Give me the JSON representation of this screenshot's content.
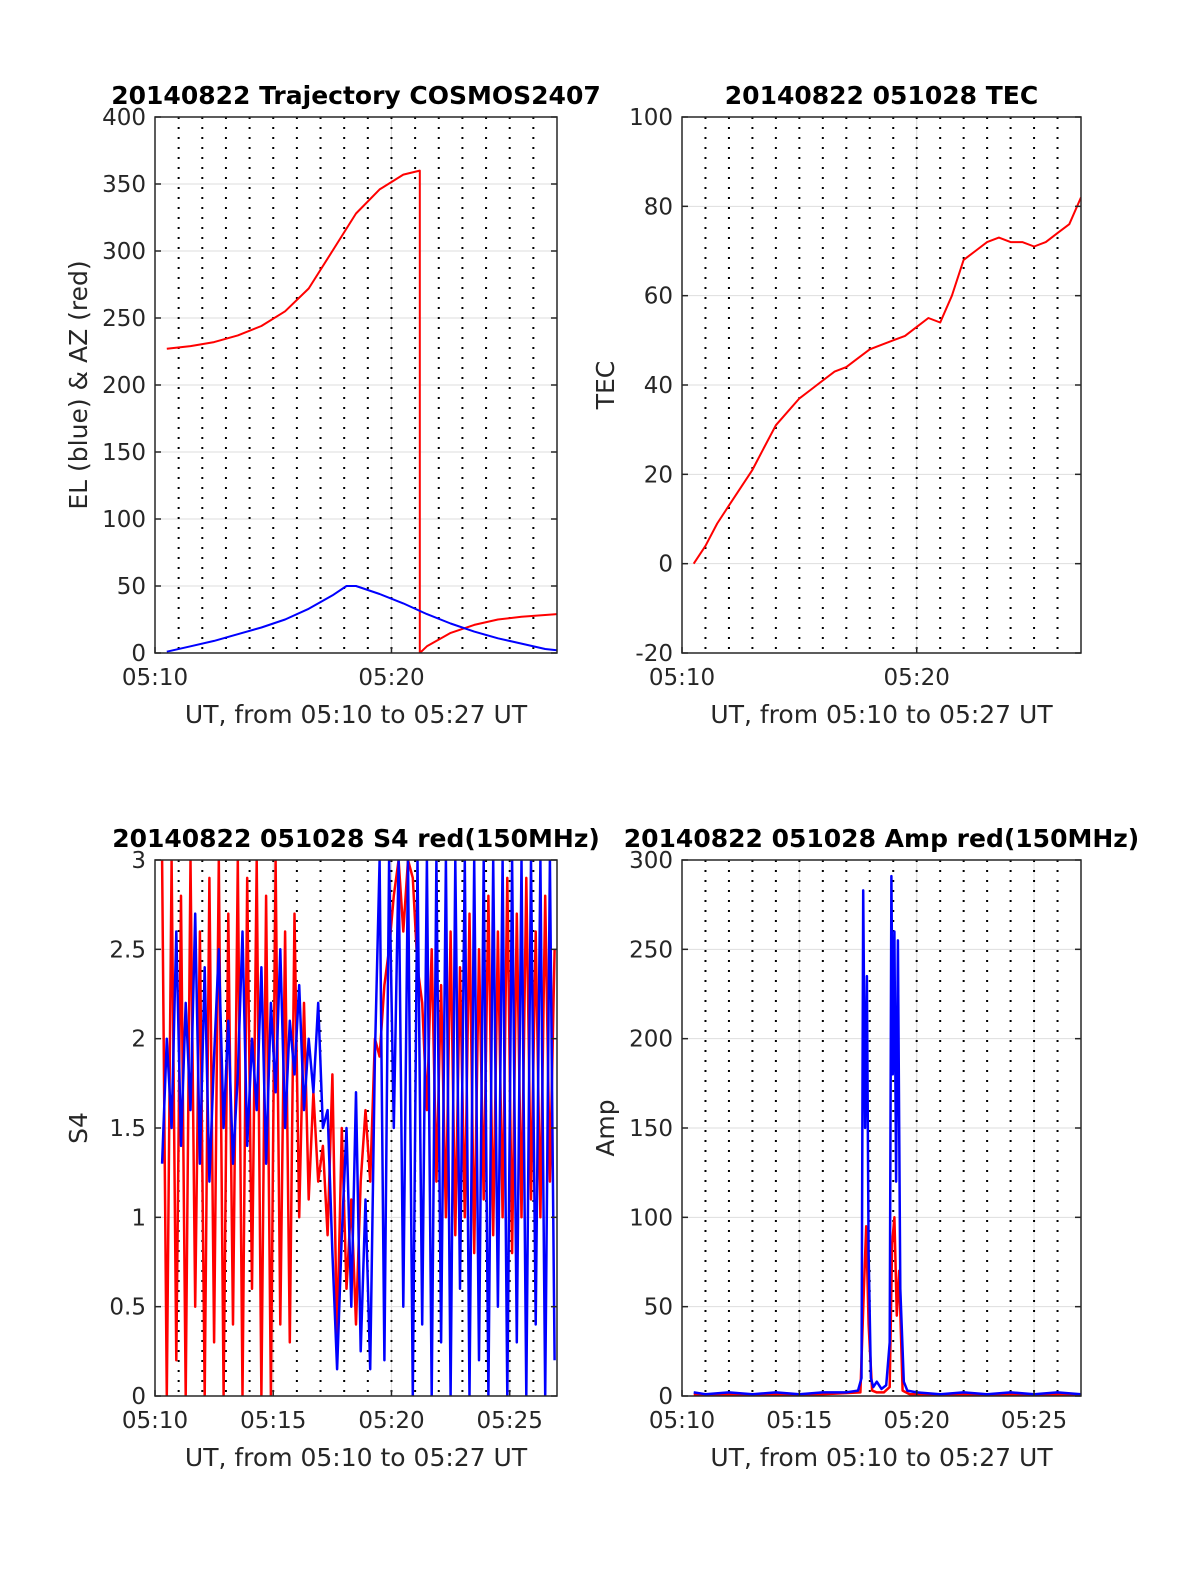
{
  "chart_data": [
    {
      "type": "line",
      "title": "20140822 Trajectory COSMOS2407",
      "xlabel": "UT, from 05:10 to 05:27 UT",
      "ylabel": "EL (blue) & AZ (red)",
      "xlim": [
        10,
        27
      ],
      "ylim": [
        0,
        400
      ],
      "xticks": [
        10,
        20
      ],
      "xtick_labels": [
        "05:10",
        "05:20"
      ],
      "yticks": [
        0,
        50,
        100,
        150,
        200,
        250,
        300,
        350,
        400
      ],
      "ytick_labels": [
        "0",
        "50",
        "100",
        "150",
        "200",
        "250",
        "300",
        "350",
        "400"
      ],
      "grid": true,
      "series": [
        {
          "color": "#ff0000",
          "x": [
            10.5,
            11.5,
            12.5,
            13.5,
            14.5,
            15.5,
            16.5,
            17.5,
            18.5,
            19.5,
            20.5,
            21.2,
            21.2,
            21.5,
            22.5,
            23.5,
            24.5,
            25.5,
            27
          ],
          "y": [
            227,
            229,
            232,
            237,
            244,
            255,
            272,
            300,
            328,
            346,
            357,
            360,
            0,
            5,
            15,
            21,
            25,
            27,
            29
          ]
        },
        {
          "color": "#0000ff",
          "x": [
            10.5,
            11.5,
            12.5,
            13.5,
            14.5,
            15.5,
            16.5,
            17.5,
            18.1,
            18.5,
            19.5,
            20.5,
            21.5,
            22.5,
            23.5,
            24.5,
            25.5,
            26.5,
            27
          ],
          "y": [
            1,
            5,
            9,
            14,
            19,
            25,
            33,
            43,
            50,
            50,
            44,
            37,
            29,
            22,
            16,
            11,
            7,
            3,
            2
          ]
        }
      ]
    },
    {
      "type": "line",
      "title": "20140822 051028 TEC",
      "xlabel": "UT, from 05:10 to 05:27 UT",
      "ylabel": "TEC",
      "xlim": [
        10,
        27
      ],
      "ylim": [
        -20,
        100
      ],
      "xticks": [
        10,
        20
      ],
      "xtick_labels": [
        "05:10",
        "05:20"
      ],
      "yticks": [
        -20,
        0,
        20,
        40,
        60,
        80,
        100
      ],
      "ytick_labels": [
        "-20",
        "0",
        "20",
        "40",
        "60",
        "80",
        "100"
      ],
      "grid": true,
      "series": [
        {
          "color": "#ff0000",
          "x": [
            10.5,
            11,
            11.5,
            12,
            12.5,
            13,
            13.5,
            14,
            14.5,
            15,
            15.5,
            16,
            16.5,
            17,
            17.5,
            18,
            18.5,
            19,
            19.5,
            20,
            20.5,
            21,
            21.5,
            22,
            22.5,
            23,
            23.5,
            24,
            24.5,
            25,
            25.5,
            26,
            26.5,
            27
          ],
          "y": [
            0,
            4,
            9,
            13,
            17,
            21,
            26,
            31,
            34,
            37,
            39,
            41,
            43,
            44,
            46,
            48,
            49,
            50,
            51,
            53,
            55,
            54,
            60,
            68,
            70,
            72,
            73,
            72,
            72,
            71,
            72,
            74,
            76,
            82
          ]
        }
      ]
    },
    {
      "type": "line",
      "title": "20140822 051028 S4 red(150MHz)",
      "xlabel": "UT, from 05:10 to 05:27 UT",
      "ylabel": "S4",
      "xlim": [
        10,
        27
      ],
      "ylim": [
        0,
        3
      ],
      "xticks": [
        10,
        15,
        20,
        25
      ],
      "xtick_labels": [
        "05:10",
        "05:15",
        "05:20",
        "05:25"
      ],
      "yticks": [
        0,
        0.5,
        1,
        1.5,
        2,
        2.5,
        3
      ],
      "ytick_labels": [
        "0",
        "0.5",
        "1",
        "1.5",
        "2",
        "2.5",
        "3"
      ],
      "grid": true,
      "series": [
        {
          "color": "#ff0000",
          "x": [
            10.3,
            10.5,
            10.7,
            10.9,
            11.1,
            11.3,
            11.5,
            11.7,
            11.9,
            12.1,
            12.3,
            12.5,
            12.7,
            12.9,
            13.1,
            13.3,
            13.5,
            13.7,
            13.9,
            14.1,
            14.3,
            14.5,
            14.7,
            14.9,
            15.1,
            15.3,
            15.5,
            15.7,
            15.9,
            16.1,
            16.3,
            16.5,
            16.7,
            16.9,
            17.1,
            17.3,
            17.5,
            17.7,
            17.9,
            18.1,
            18.3,
            18.5,
            18.7,
            18.9,
            19.1,
            19.3,
            19.5,
            19.7,
            19.9,
            20.1,
            20.3,
            20.5,
            20.7,
            20.9,
            21.1,
            21.3,
            21.5,
            21.7,
            21.9,
            22.1,
            22.3,
            22.5,
            22.7,
            22.9,
            23.1,
            23.3,
            23.5,
            23.7,
            23.9,
            24.1,
            24.3,
            24.5,
            24.7,
            24.9,
            25.1,
            25.3,
            25.5,
            25.7,
            25.9,
            26.1,
            26.3,
            26.5,
            26.7,
            26.9
          ],
          "y": [
            3,
            0,
            3,
            0.2,
            2.8,
            0,
            3,
            0.5,
            2.6,
            0,
            2.9,
            0.3,
            3,
            0,
            2.7,
            0.4,
            3,
            0,
            2.9,
            0.6,
            3,
            0,
            2.8,
            0,
            3,
            0.4,
            2.6,
            0.3,
            2.7,
            1.0,
            2.2,
            1.1,
            1.7,
            1.2,
            1.4,
            0.9,
            1.8,
            0.3,
            1.5,
            0.6,
            1.1,
            0.4,
            1.2,
            1.6,
            1.2,
            2.0,
            1.9,
            2.3,
            2.5,
            2.8,
            3,
            2.6,
            3,
            2.9,
            2.4,
            2.2,
            1.6,
            2.5,
            1.2,
            2.3,
            1.0,
            2.6,
            0.9,
            2.4,
            1.0,
            2.7,
            0.8,
            2.5,
            1.1,
            2.8,
            0.9,
            2.6,
            1.0,
            2.9,
            0.8,
            2.7,
            1.0,
            2.9,
            1.1,
            2.6,
            1.0,
            2.8,
            1.2,
            2.5
          ]
        },
        {
          "color": "#0000ff",
          "x": [
            10.3,
            10.5,
            10.7,
            10.9,
            11.1,
            11.3,
            11.5,
            11.7,
            11.9,
            12.1,
            12.3,
            12.5,
            12.7,
            12.9,
            13.1,
            13.3,
            13.5,
            13.7,
            13.9,
            14.1,
            14.3,
            14.5,
            14.7,
            14.9,
            15.1,
            15.3,
            15.5,
            15.7,
            15.9,
            16.1,
            16.3,
            16.5,
            16.7,
            16.9,
            17.1,
            17.3,
            17.5,
            17.7,
            17.9,
            18.1,
            18.3,
            18.5,
            18.7,
            18.9,
            19.1,
            19.3,
            19.5,
            19.7,
            19.9,
            20.1,
            20.3,
            20.5,
            20.7,
            20.9,
            21.1,
            21.3,
            21.5,
            21.7,
            21.9,
            22.1,
            22.3,
            22.5,
            22.7,
            22.9,
            23.1,
            23.3,
            23.5,
            23.7,
            23.9,
            24.1,
            24.3,
            24.5,
            24.7,
            24.9,
            25.1,
            25.3,
            25.5,
            25.7,
            25.9,
            26.1,
            26.3,
            26.5,
            26.7,
            26.9
          ],
          "y": [
            1.3,
            2.0,
            1.5,
            2.6,
            1.4,
            2.2,
            1.6,
            2.7,
            1.3,
            2.4,
            1.2,
            1.9,
            2.5,
            1.5,
            2.1,
            1.3,
            1.8,
            2.6,
            1.4,
            2.0,
            1.6,
            2.4,
            1.3,
            2.2,
            1.7,
            2.5,
            1.5,
            2.1,
            1.8,
            2.3,
            1.6,
            2.0,
            1.7,
            2.2,
            1.5,
            1.6,
            0.8,
            0.15,
            0.9,
            1.5,
            0.5,
            1.7,
            0.25,
            1.1,
            0.15,
            1.9,
            3,
            0.2,
            3,
            1.5,
            3,
            0.5,
            3,
            0,
            3,
            0.4,
            3,
            0,
            3,
            0.3,
            3,
            0,
            3,
            0.6,
            3,
            0,
            3,
            0.2,
            3,
            0,
            3,
            0.5,
            3,
            0,
            3,
            0.3,
            3,
            0,
            3,
            0.4,
            3,
            0,
            3,
            0.2
          ]
        }
      ]
    },
    {
      "type": "line",
      "title": "20140822 051028 Amp red(150MHz)",
      "xlabel": "UT, from 05:10 to 05:27 UT",
      "ylabel": "Amp",
      "xlim": [
        10,
        27
      ],
      "ylim": [
        0,
        300
      ],
      "xticks": [
        10,
        15,
        20,
        25
      ],
      "xtick_labels": [
        "05:10",
        "05:15",
        "05:20",
        "05:25"
      ],
      "yticks": [
        0,
        50,
        100,
        150,
        200,
        250,
        300
      ],
      "ytick_labels": [
        "0",
        "50",
        "100",
        "150",
        "200",
        "250",
        "300"
      ],
      "grid": true,
      "series": [
        {
          "color": "#ff0000",
          "x": [
            10.5,
            12,
            14,
            16,
            17.6,
            17.75,
            17.85,
            17.95,
            18.1,
            18.3,
            18.6,
            18.85,
            18.95,
            19.05,
            19.15,
            19.25,
            19.4,
            19.7,
            21,
            23,
            25,
            27
          ],
          "y": [
            1,
            1,
            1,
            1,
            2,
            60,
            95,
            40,
            3,
            2,
            2,
            5,
            85,
            100,
            45,
            70,
            3,
            1,
            1,
            1,
            1,
            1
          ]
        },
        {
          "color": "#0000ff",
          "x": [
            10.5,
            11,
            12,
            13,
            14,
            15,
            16,
            17,
            17.5,
            17.65,
            17.72,
            17.8,
            17.88,
            17.95,
            18.05,
            18.15,
            18.3,
            18.5,
            18.7,
            18.85,
            18.92,
            18.98,
            19.05,
            19.12,
            19.2,
            19.3,
            19.45,
            19.6,
            20,
            21,
            22,
            23,
            24,
            25,
            26,
            27
          ],
          "y": [
            2,
            1,
            2,
            1,
            2,
            1,
            2,
            2,
            3,
            10,
            283,
            150,
            235,
            80,
            10,
            5,
            8,
            4,
            6,
            30,
            291,
            180,
            260,
            120,
            255,
            60,
            8,
            3,
            2,
            1,
            2,
            1,
            2,
            1,
            2,
            1
          ]
        }
      ]
    }
  ]
}
